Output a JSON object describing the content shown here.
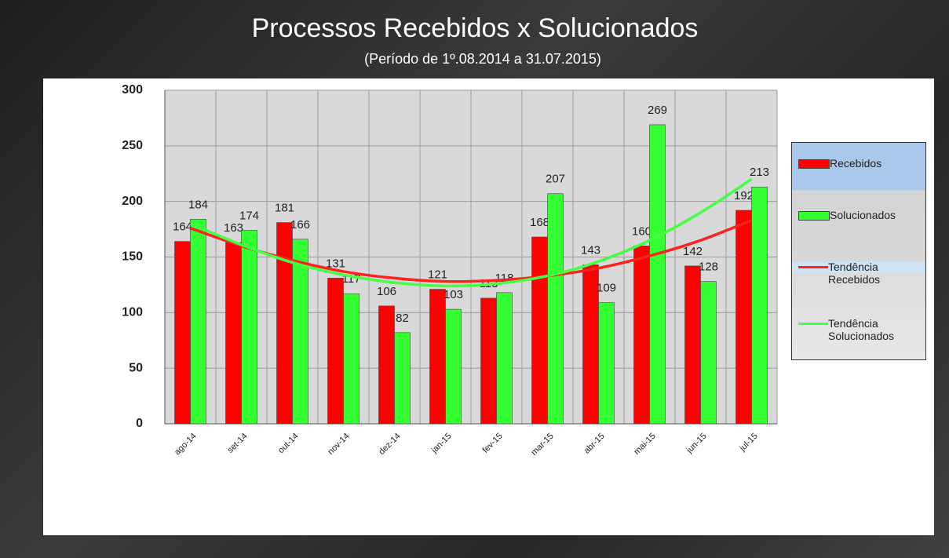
{
  "chart_data": {
    "type": "bar",
    "title": "Processos Recebidos x Solucionados",
    "subtitle": "(Período de 1º.08.2014  a  31.07.2015)",
    "categories": [
      "ago-14",
      "set-14",
      "out-14",
      "nov-14",
      "dez-14",
      "jan-15",
      "fev-15",
      "mar-15",
      "abr-15",
      "mai-15",
      "jun-15",
      "jul-15"
    ],
    "series": [
      {
        "name": "Recebidos",
        "type": "bar",
        "color": "#ff0000",
        "values": [
          164,
          163,
          181,
          131,
          106,
          121,
          113,
          168,
          143,
          160,
          142,
          192
        ]
      },
      {
        "name": "Solucionados",
        "type": "bar",
        "color": "#33ff33",
        "values": [
          184,
          174,
          166,
          117,
          82,
          103,
          118,
          207,
          109,
          269,
          128,
          213
        ]
      },
      {
        "name": "Tendência Recebidos",
        "type": "line",
        "color": "#ff2020",
        "values": [
          176,
          160,
          147,
          137,
          131,
          128,
          129,
          133,
          140,
          151,
          165,
          183
        ]
      },
      {
        "name": "Tendência Solucionados",
        "type": "line",
        "color": "#44ff44",
        "values": [
          180,
          161,
          145,
          134,
          127,
          124,
          126,
          133,
          146,
          165,
          190,
          220
        ]
      }
    ],
    "ylim": [
      0,
      300
    ],
    "yticks": [
      0,
      50,
      100,
      150,
      200,
      250,
      300
    ],
    "grid": true,
    "legend": "right"
  }
}
